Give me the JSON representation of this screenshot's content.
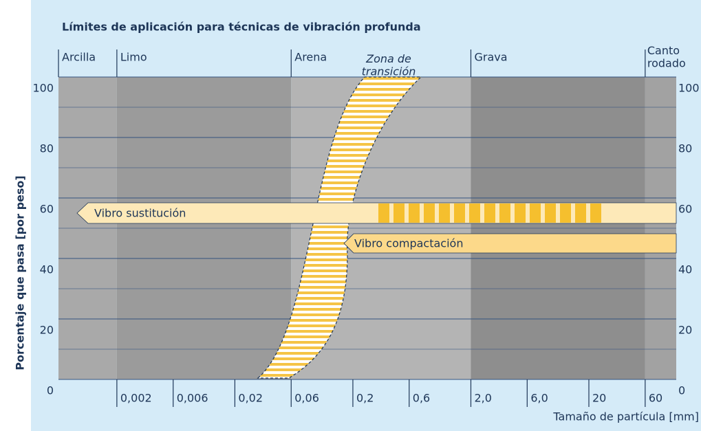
{
  "chart_data": {
    "type": "zones",
    "title": "Límites de aplicación para técnicas de vibración profunda",
    "x_label": "Tamaño de partícula [mm]",
    "y_label": "Porcentaje que pasa [por peso]",
    "xlog": true,
    "xlim": [
      0.00064,
      110
    ],
    "xticks": [
      {
        "value": 0.002,
        "label": "0,002"
      },
      {
        "value": 0.006,
        "label": "0,006"
      },
      {
        "value": 0.02,
        "label": "0,02"
      },
      {
        "value": 0.06,
        "label": "0,06"
      },
      {
        "value": 0.2,
        "label": "0,2"
      },
      {
        "value": 0.6,
        "label": "0,6"
      },
      {
        "value": 2,
        "label": "2,0"
      },
      {
        "value": 6,
        "label": "6,0"
      },
      20,
      60
    ],
    "ylim": [
      0,
      100
    ],
    "yticks": [
      0,
      20,
      40,
      60,
      80,
      100
    ],
    "y_minor_ticks": [
      10,
      30,
      50,
      70,
      90
    ],
    "grid": true,
    "zone_bounds": [
      0.002,
      0.06,
      2,
      60
    ],
    "zones": [
      {
        "name": "Arcilla",
        "color": "#a9a9a9"
      },
      {
        "name": "Limo",
        "color": "#9b9b9b"
      },
      {
        "name": "Arena",
        "color": "#b4b4b4"
      },
      {
        "name": "Grava",
        "color": "#8e8e8e"
      },
      {
        "name": "Canto rodado",
        "color": "#a2a2a2"
      }
    ],
    "transition_label": "Zona de transición",
    "methods": [
      "Vibro sustitución",
      "Vibro compactación"
    ]
  }
}
